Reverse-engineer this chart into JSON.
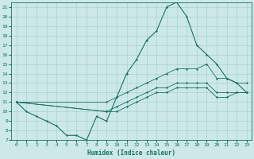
{
  "xlabel": "Humidex (Indice chaleur)",
  "xlim": [
    -0.5,
    23.5
  ],
  "ylim": [
    7,
    21.5
  ],
  "yticks": [
    7,
    8,
    9,
    10,
    11,
    12,
    13,
    14,
    15,
    16,
    17,
    18,
    19,
    20,
    21
  ],
  "xticks": [
    0,
    1,
    2,
    3,
    4,
    5,
    6,
    7,
    8,
    9,
    10,
    11,
    12,
    13,
    14,
    15,
    16,
    17,
    18,
    19,
    20,
    21,
    22,
    23
  ],
  "background_color": "#cce8e8",
  "grid_color": "#aad0d0",
  "line_color": "#1a7060",
  "lines": [
    {
      "x": [
        0,
        1,
        2,
        3,
        4,
        5,
        6,
        7,
        8,
        9,
        10,
        11,
        12,
        13,
        14,
        15,
        16,
        17,
        18,
        19,
        20,
        21,
        22,
        23
      ],
      "y": [
        11,
        10,
        9.5,
        9,
        8.5,
        7.5,
        7.5,
        7,
        9.5,
        9,
        11.5,
        14,
        15.5,
        17.5,
        18.5,
        21,
        21.5,
        20,
        17,
        16,
        15,
        13.5,
        13,
        12
      ]
    },
    {
      "x": [
        0,
        9,
        10,
        11,
        12,
        13,
        14,
        15,
        16,
        17,
        18,
        19,
        20,
        21,
        22,
        23
      ],
      "y": [
        11,
        11,
        11.5,
        12,
        12.5,
        13,
        13.5,
        14,
        14.5,
        14.5,
        14.5,
        15,
        13.5,
        13.5,
        13,
        13
      ]
    },
    {
      "x": [
        0,
        9,
        10,
        11,
        12,
        13,
        14,
        15,
        16,
        17,
        18,
        19,
        20,
        21,
        22,
        23
      ],
      "y": [
        11,
        10,
        10.5,
        11,
        11.5,
        12,
        12.5,
        12.5,
        13,
        13,
        13,
        13,
        12,
        12,
        12,
        12
      ]
    },
    {
      "x": [
        0,
        9,
        10,
        11,
        12,
        13,
        14,
        15,
        16,
        17,
        18,
        19,
        20,
        21,
        22,
        23
      ],
      "y": [
        11,
        10,
        10,
        10.5,
        11,
        11.5,
        12,
        12,
        12.5,
        12.5,
        12.5,
        12.5,
        11.5,
        11.5,
        12,
        12
      ]
    }
  ]
}
